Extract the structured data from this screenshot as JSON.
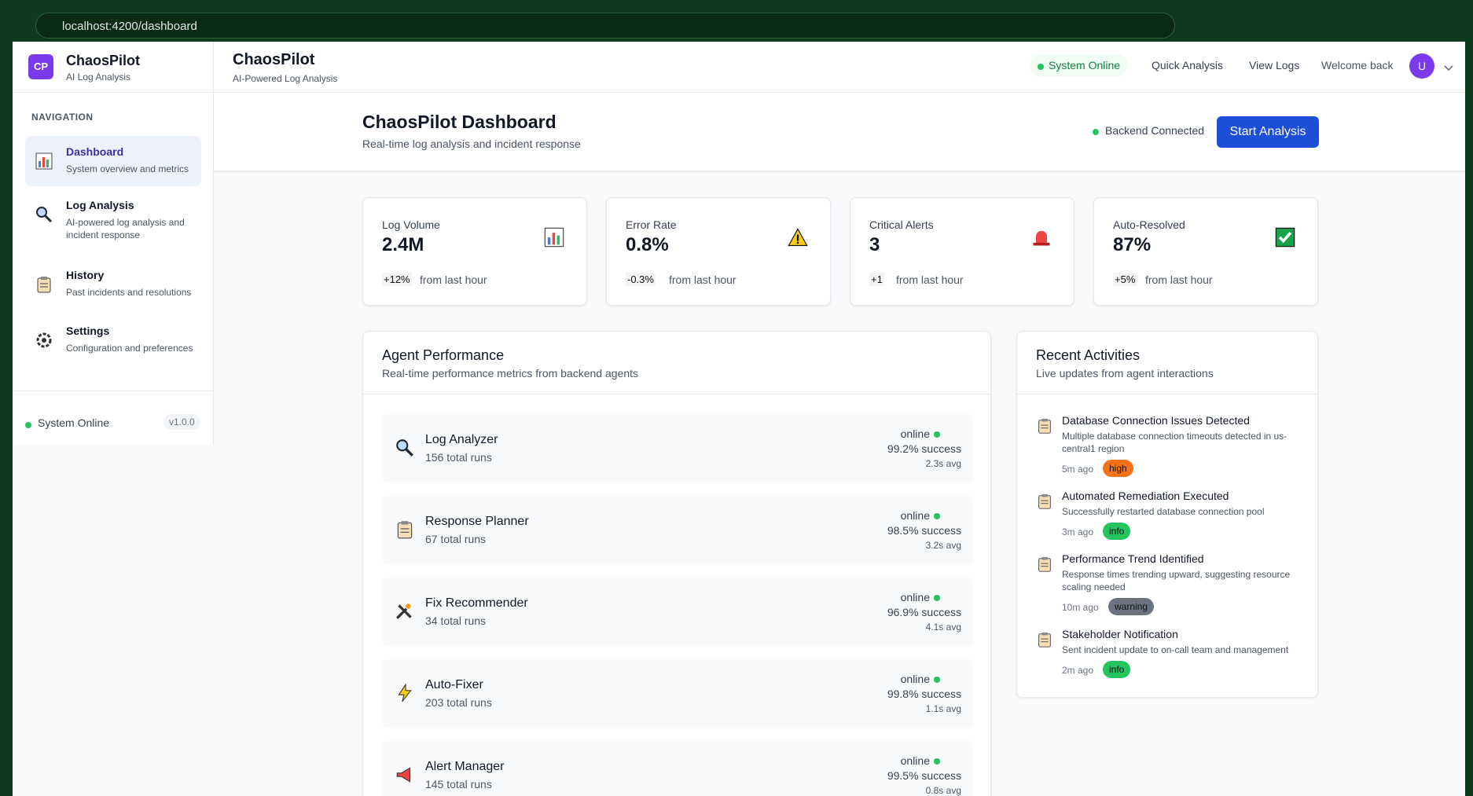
{
  "browser": {
    "url": "localhost:4200/dashboard"
  },
  "sidebar": {
    "logo": "CP",
    "brand": "ChaosPilot",
    "tagline": "AI Log Analysis",
    "nav_heading": "NAVIGATION",
    "nav_items": [
      {
        "label": "Dashboard",
        "description": "System overview and metrics"
      },
      {
        "label": "Log Analysis",
        "description": "AI-powered log analysis and incident response"
      },
      {
        "label": "History",
        "description": "Past incidents and resolutions"
      },
      {
        "label": "Settings",
        "description": "Configuration and preferences"
      }
    ],
    "status": "System Online",
    "version": "v1.0.0"
  },
  "header": {
    "title": "ChaosPilot",
    "subtitle": "AI-Powered Log Analysis",
    "status": "System Online",
    "links": [
      "Quick Analysis",
      "View Logs"
    ],
    "welcome": "Welcome back",
    "avatar": "U"
  },
  "page": {
    "title": "ChaosPilot Dashboard",
    "subtitle": "Real-time log analysis and incident response",
    "connection": "Backend Connected",
    "button": "Start Analysis"
  },
  "metrics": [
    {
      "label": "Log Volume",
      "value": "2.4M",
      "change": "+12%",
      "note": "from last hour"
    },
    {
      "label": "Error Rate",
      "value": "0.8%",
      "change": "-0.3%",
      "note": "from last hour"
    },
    {
      "label": "Critical Alerts",
      "value": "3",
      "change": "+1",
      "note": "from last hour"
    },
    {
      "label": "Auto-Resolved",
      "value": "87%",
      "change": "+5%",
      "note": "from last hour"
    }
  ],
  "agents_panel": {
    "title": "Agent Performance",
    "subtitle": "Real-time performance metrics from backend agents",
    "agents": [
      {
        "name": "Log Analyzer",
        "runs": "156 total runs",
        "status": "online",
        "success": "99.2% success",
        "avg": "2.3s avg"
      },
      {
        "name": "Response Planner",
        "runs": "67 total runs",
        "status": "online",
        "success": "98.5% success",
        "avg": "3.2s avg"
      },
      {
        "name": "Fix Recommender",
        "runs": "34 total runs",
        "status": "online",
        "success": "96.9% success",
        "avg": "4.1s avg"
      },
      {
        "name": "Auto-Fixer",
        "runs": "203 total runs",
        "status": "online",
        "success": "99.8% success",
        "avg": "1.1s avg"
      },
      {
        "name": "Alert Manager",
        "runs": "145 total runs",
        "status": "online",
        "success": "99.5% success",
        "avg": "0.8s avg"
      }
    ]
  },
  "activities_panel": {
    "title": "Recent Activities",
    "subtitle": "Live updates from agent interactions",
    "activities": [
      {
        "title": "Database Connection Issues Detected",
        "description": "Multiple database connection timeouts detected in us-central1 region",
        "time": "5m ago",
        "level": "high",
        "color": "#f97316"
      },
      {
        "title": "Automated Remediation Executed",
        "description": "Successfully restarted database connection pool",
        "time": "3m ago",
        "level": "info",
        "color": "#22c55e"
      },
      {
        "title": "Performance Trend Identified",
        "description": "Response times trending upward, suggesting resource scaling needed",
        "time": "10m ago",
        "level": "warning",
        "color": "#6b7280"
      },
      {
        "title": "Stakeholder Notification",
        "description": "Sent incident update to on-call team and management",
        "time": "2m ago",
        "level": "info",
        "color": "#22c55e"
      }
    ]
  }
}
